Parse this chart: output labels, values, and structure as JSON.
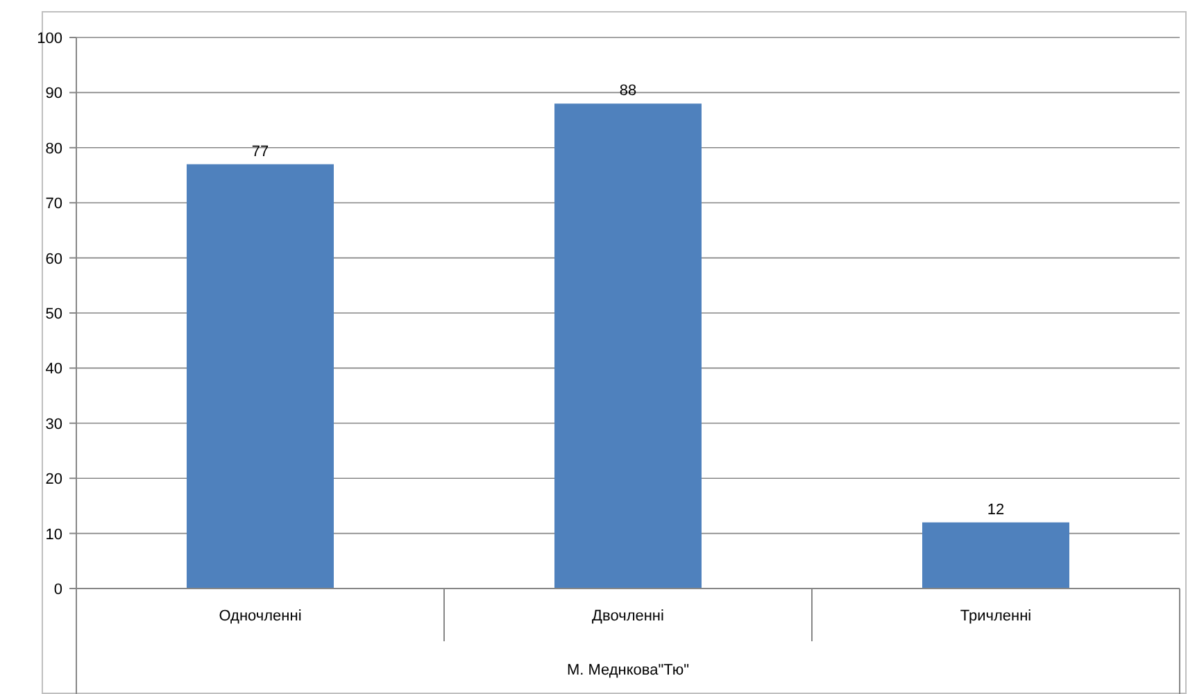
{
  "chart_data": {
    "type": "bar",
    "categories": [
      "Одночленні",
      "Двочленні",
      "Тричленні"
    ],
    "values": [
      77,
      88,
      12
    ],
    "color": "#4f81bd",
    "xlabel": "М. Меднкова\"Тю\"",
    "ylim": [
      0,
      100
    ],
    "yticks": [
      0,
      10,
      20,
      30,
      40,
      50,
      60,
      70,
      80,
      90,
      100
    ],
    "grid": "y",
    "data_labels": true
  }
}
